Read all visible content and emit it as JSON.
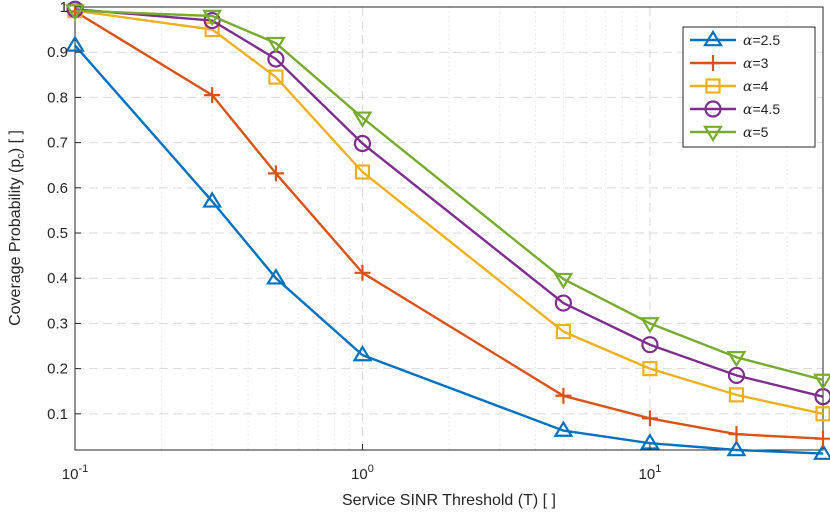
{
  "chart_data": {
    "type": "line",
    "title": "",
    "xlabel": "Service SINR Threshold (T) [ ]",
    "ylabel": "Coverage Probability (p",
    "ylabel_subscript": "c",
    "ylabel_suffix": ") [ ]",
    "xscale": "log",
    "xlim": [
      0.1,
      40
    ],
    "ylim": [
      0.02,
      1.0
    ],
    "grid": true,
    "legend_position": "top-right",
    "x": [
      0.1,
      0.3,
      0.5,
      1,
      5,
      10,
      20,
      40
    ],
    "x_ticks": [
      {
        "value": 0.1,
        "base": "10",
        "exp": "-1"
      },
      {
        "value": 1,
        "base": "10",
        "exp": "0"
      },
      {
        "value": 10,
        "base": "10",
        "exp": "1"
      }
    ],
    "y_ticks": [
      {
        "value": 0.1,
        "label": "0.1"
      },
      {
        "value": 0.2,
        "label": "0.2"
      },
      {
        "value": 0.3,
        "label": "0.3"
      },
      {
        "value": 0.4,
        "label": "0.4"
      },
      {
        "value": 0.5,
        "label": "0.5"
      },
      {
        "value": 0.6,
        "label": "0.6"
      },
      {
        "value": 0.7,
        "label": "0.7"
      },
      {
        "value": 0.8,
        "label": "0.8"
      },
      {
        "value": 0.9,
        "label": "0.9"
      },
      {
        "value": 1.0,
        "label": "1"
      }
    ],
    "series": [
      {
        "name": "α=2.5",
        "greek": "α",
        "suffix": "=2.5",
        "color": "#0072BD",
        "marker": "triangle-up",
        "values": [
          0.915,
          0.57,
          0.4,
          0.23,
          0.063,
          0.035,
          0.02,
          0.012
        ]
      },
      {
        "name": "α=3",
        "greek": "α",
        "suffix": "=3",
        "color": "#D95319",
        "marker": "plus",
        "values": [
          0.99,
          0.805,
          0.632,
          0.412,
          0.14,
          0.09,
          0.055,
          0.045
        ]
      },
      {
        "name": "α=4",
        "greek": "α",
        "suffix": "=4",
        "color": "#EDB120",
        "marker": "square",
        "values": [
          0.992,
          0.95,
          0.845,
          0.635,
          0.282,
          0.2,
          0.142,
          0.1
        ]
      },
      {
        "name": "α=4.5",
        "greek": "α",
        "suffix": "=4.5",
        "color": "#7E2F8E",
        "marker": "circle",
        "values": [
          0.995,
          0.97,
          0.885,
          0.698,
          0.345,
          0.253,
          0.185,
          0.138
        ]
      },
      {
        "name": "α=5",
        "greek": "α",
        "suffix": "=5",
        "color": "#77AC30",
        "marker": "triangle-down",
        "values": [
          0.992,
          0.98,
          0.92,
          0.755,
          0.398,
          0.3,
          0.225,
          0.175
        ]
      }
    ]
  }
}
